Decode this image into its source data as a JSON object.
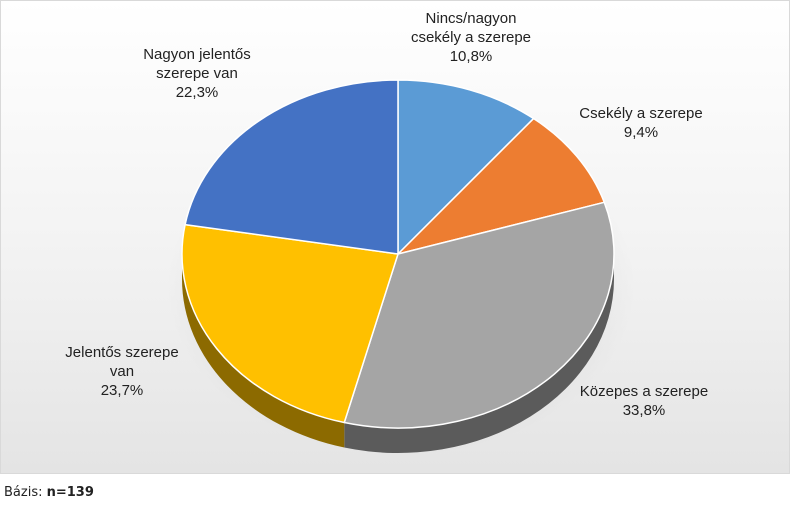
{
  "chart_data": {
    "type": "pie",
    "title": "",
    "style": "3d",
    "slices": [
      {
        "label": "Nincs/nagyon csekély a szerepe",
        "label_lines": [
          "Nincs/nagyon",
          "csekély a szerepe"
        ],
        "value": 10.8,
        "value_label": "10,8%",
        "color": "#5b9bd5"
      },
      {
        "label": "Csekély a szerepe",
        "label_lines": [
          "Csekély a szerepe"
        ],
        "value": 9.4,
        "value_label": "9,4%",
        "color": "#ed7d31"
      },
      {
        "label": "Közepes a szerepe",
        "label_lines": [
          "Közepes a szerepe"
        ],
        "value": 33.8,
        "value_label": "33,8%",
        "color": "#a5a5a5"
      },
      {
        "label": "Jelentős szerepe van",
        "label_lines": [
          "Jelentős szerepe",
          "van"
        ],
        "value": 23.7,
        "value_label": "23,7%",
        "color": "#ffc000"
      },
      {
        "label": "Nagyon jelentős szerepe van",
        "label_lines": [
          "Nagyon jelentős",
          "szerepe van"
        ],
        "value": 22.3,
        "value_label": "22,3%",
        "color": "#4472c4"
      }
    ]
  },
  "footnote": {
    "prefix": "Bázis: ",
    "value": "n=139"
  }
}
